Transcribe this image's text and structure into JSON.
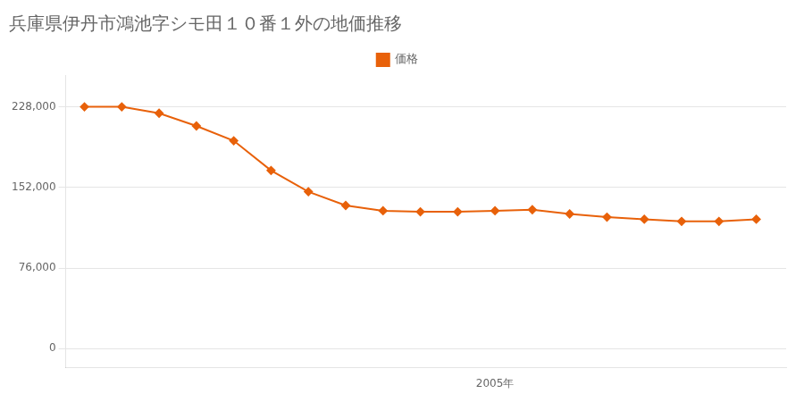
{
  "chart_data": {
    "type": "line",
    "title": "兵庫県伊丹市鴻池字シモ田１０番１外の地価推移",
    "x": [
      1994,
      1995,
      1996,
      1997,
      1998,
      1999,
      2000,
      2001,
      2002,
      2003,
      2004,
      2005,
      2006,
      2007,
      2008,
      2009,
      2010,
      2011,
      2012
    ],
    "series": [
      {
        "name": "価格",
        "color": "#e8610a",
        "marker": "diamond",
        "values": [
          228000,
          228000,
          222000,
          210000,
          196000,
          168000,
          148000,
          135000,
          130000,
          129000,
          129000,
          130000,
          131000,
          127000,
          124000,
          122000,
          120000,
          120000,
          122000
        ]
      }
    ],
    "xlim": [
      1993.5,
      2012.8
    ],
    "xticks": [
      {
        "value": 2005,
        "label": "2005年"
      }
    ],
    "ylim": [
      -18000,
      258000
    ],
    "yticks": [
      0,
      {
        "value": 76000,
        "label": "76,000"
      },
      {
        "value": 152000,
        "label": "152,000"
      },
      {
        "value": 228000,
        "label": "228,000"
      }
    ],
    "grid": "y",
    "legend": "top"
  }
}
